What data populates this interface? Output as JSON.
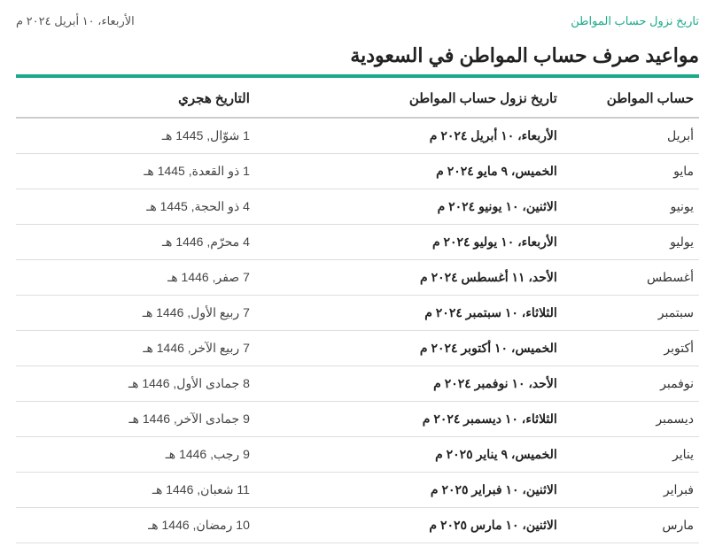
{
  "header": {
    "link_text": "تاريخ نزول حساب المواطن",
    "current_date": "الأربعاء، ١٠ أبريل ٢٠٢٤ م"
  },
  "title": "مواعيد صرف حساب المواطن في السعودية",
  "table": {
    "columns": {
      "month": "حساب المواطن",
      "gregorian": "تاريخ نزول حساب المواطن",
      "hijri": "التاريخ هجري"
    },
    "rows": [
      {
        "month": "أبريل",
        "gregorian": "الأربعاء، ١٠ أبريل ٢٠٢٤ م",
        "hijri": "1 شوّال, 1445 هـ"
      },
      {
        "month": "مايو",
        "gregorian": "الخميس، ٩ مايو ٢٠٢٤ م",
        "hijri": "1 ذو القعدة, 1445 هـ"
      },
      {
        "month": "يونيو",
        "gregorian": "الاثنين، ١٠ يونيو ٢٠٢٤ م",
        "hijri": "4 ذو الحجة, 1445 هـ"
      },
      {
        "month": "يوليو",
        "gregorian": "الأربعاء، ١٠ يوليو ٢٠٢٤ م",
        "hijri": "4 محرّم, 1446 هـ"
      },
      {
        "month": "أغسطس",
        "gregorian": "الأحد، ١١ أغسطس ٢٠٢٤ م",
        "hijri": "7 صفر, 1446 هـ"
      },
      {
        "month": "سبتمبر",
        "gregorian": "الثلاثاء، ١٠ سبتمبر ٢٠٢٤ م",
        "hijri": "7 ربيع الأول, 1446 هـ"
      },
      {
        "month": "أكتوبر",
        "gregorian": "الخميس، ١٠ أكتوبر ٢٠٢٤ م",
        "hijri": "7 ربيع الآخر, 1446 هـ"
      },
      {
        "month": "نوفمبر",
        "gregorian": "الأحد، ١٠ نوفمبر ٢٠٢٤ م",
        "hijri": "8 جمادى الأول, 1446 هـ"
      },
      {
        "month": "ديسمبر",
        "gregorian": "الثلاثاء، ١٠ ديسمبر ٢٠٢٤ م",
        "hijri": "9 جمادى الآخر, 1446 هـ"
      },
      {
        "month": "يناير",
        "gregorian": "الخميس، ٩ يناير ٢٠٢٥ م",
        "hijri": "9 رجب, 1446 هـ"
      },
      {
        "month": "فبراير",
        "gregorian": "الاثنين، ١٠ فبراير ٢٠٢٥ م",
        "hijri": "11 شعبان, 1446 هـ"
      },
      {
        "month": "مارس",
        "gregorian": "الاثنين، ١٠ مارس ٢٠٢٥ م",
        "hijri": "10 رمضان, 1446 هـ"
      }
    ]
  },
  "styles": {
    "accent_color": "#1aaa8a",
    "text_color": "#333333",
    "header_border_color": "#cccccc",
    "row_border_color": "#dddddd",
    "background": "#ffffff"
  }
}
